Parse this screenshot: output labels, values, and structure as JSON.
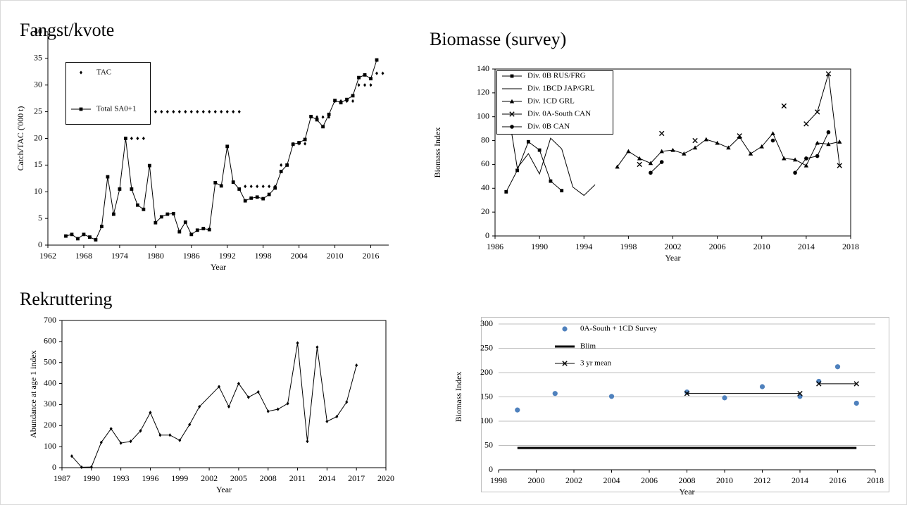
{
  "chart_data": [
    {
      "type": "line",
      "title": "Fangst/kvote",
      "xlabel": "Year",
      "ylabel": "Catch/TAC ('000 t)",
      "xlim": [
        1962,
        2019
      ],
      "xticks": [
        1962,
        1968,
        1974,
        1980,
        1986,
        1992,
        1998,
        2004,
        2010,
        2016
      ],
      "ylim": [
        0,
        40
      ],
      "yticks": [
        0,
        5,
        10,
        15,
        20,
        25,
        30,
        35,
        40
      ],
      "series": [
        {
          "name": "TAC",
          "color": "#000000",
          "marker": "diamond",
          "line": false,
          "x": [
            1975,
            1976,
            1977,
            1978,
            1979,
            1980,
            1981,
            1982,
            1983,
            1984,
            1985,
            1986,
            1987,
            1988,
            1989,
            1990,
            1991,
            1992,
            1993,
            1994,
            1995,
            1996,
            1997,
            1998,
            1999,
            2000,
            2001,
            2002,
            2003,
            2004,
            2005,
            2006,
            2007,
            2008,
            2009,
            2010,
            2011,
            2012,
            2013,
            2014,
            2015,
            2016,
            2017,
            2018
          ],
          "values": [
            20,
            20,
            20,
            20,
            25,
            25,
            25,
            25,
            25,
            25,
            25,
            25,
            25,
            25,
            25,
            25,
            25,
            25,
            25,
            25,
            11,
            11,
            11,
            11,
            11,
            11,
            15,
            15,
            19,
            19,
            19,
            24,
            24,
            24,
            24,
            27,
            27,
            27,
            27,
            30,
            30,
            30,
            32.2,
            32.2
          ]
        },
        {
          "name": "Total SA0+1",
          "color": "#000000",
          "marker": "square",
          "line": true,
          "x": [
            1965,
            1966,
            1967,
            1968,
            1969,
            1970,
            1971,
            1972,
            1973,
            1974,
            1975,
            1976,
            1977,
            1978,
            1979,
            1980,
            1981,
            1982,
            1983,
            1984,
            1985,
            1986,
            1987,
            1988,
            1989,
            1990,
            1991,
            1992,
            1993,
            1994,
            1995,
            1996,
            1997,
            1998,
            1999,
            2000,
            2001,
            2002,
            2003,
            2004,
            2005,
            2006,
            2007,
            2008,
            2009,
            2010,
            2011,
            2012,
            2013,
            2014,
            2015,
            2016,
            2017
          ],
          "values": [
            1.7,
            2.0,
            1.2,
            2.0,
            1.5,
            1.0,
            3.5,
            12.8,
            5.8,
            10.5,
            20,
            10.5,
            7.5,
            6.7,
            14.9,
            4.2,
            5.3,
            5.8,
            5.9,
            2.5,
            4.3,
            2.0,
            2.8,
            3.1,
            2.9,
            11.7,
            11.1,
            18.5,
            11.8,
            10.5,
            8.3,
            8.8,
            9.0,
            8.7,
            9.5,
            10.7,
            13.8,
            15.0,
            18.9,
            19.2,
            19.8,
            24.1,
            23.5,
            22.2,
            24.5,
            27.1,
            26.7,
            27.3,
            28.0,
            31.4,
            31.9,
            31.2,
            34.7
          ]
        }
      ]
    },
    {
      "type": "line",
      "title": "Biomasse (survey)",
      "xlabel": "Year",
      "ylabel": "Biomass Index",
      "xlim": [
        1986,
        2018
      ],
      "xticks": [
        1986,
        1990,
        1994,
        1998,
        2002,
        2006,
        2010,
        2014,
        2018
      ],
      "ylim": [
        0,
        140
      ],
      "yticks": [
        0,
        20,
        40,
        60,
        80,
        100,
        120,
        140
      ],
      "series": [
        {
          "name": "Div. 0B RUS/FRG",
          "color": "#000000",
          "marker": "square",
          "line": true,
          "x": [
            1987,
            1988,
            1989,
            1990,
            1991,
            1992
          ],
          "values": [
            37,
            55,
            79,
            72,
            46,
            38
          ]
        },
        {
          "name": "Div. 1BCD JAP/GRL",
          "color": "#000000",
          "marker": "none",
          "line": true,
          "x": [
            1987,
            1988,
            1989,
            1990,
            1991,
            1992,
            1993,
            1994,
            1995
          ],
          "values": [
            115,
            57,
            69,
            52,
            82,
            73,
            41,
            34,
            43
          ]
        },
        {
          "name": "Div. 1CD GRL",
          "color": "#000000",
          "marker": "triangle",
          "line": true,
          "x": [
            1997,
            1998,
            1999,
            2000,
            2001,
            2002,
            2003,
            2004,
            2005,
            2006,
            2007,
            2008,
            2009,
            2010,
            2011,
            2012,
            2013,
            2014,
            2015,
            2016,
            2017
          ],
          "values": [
            58,
            71,
            65,
            61,
            71,
            72,
            69,
            74,
            81,
            78,
            74,
            83,
            69,
            75,
            86,
            65,
            64,
            59,
            78,
            77,
            79
          ]
        },
        {
          "name": "Div. 0A-South CAN",
          "color": "#000000",
          "marker": "x",
          "line": true,
          "x": [
            1999,
            2000,
            2001,
            2002,
            2003,
            2004,
            2005,
            2006,
            2007,
            2008,
            2009,
            2010,
            2011,
            2012,
            2013,
            2014,
            2015,
            2016,
            2017
          ],
          "values": [
            60,
            null,
            86,
            null,
            null,
            80,
            null,
            null,
            null,
            84,
            null,
            null,
            null,
            109,
            null,
            94,
            104,
            136,
            59
          ]
        },
        {
          "name": "Div. 0B CAN",
          "color": "#000000",
          "marker": "circle",
          "line": true,
          "x": [
            2000,
            2001,
            2002,
            2003,
            2004,
            2005,
            2006,
            2007,
            2008,
            2009,
            2010,
            2011,
            2012,
            2013,
            2014,
            2015,
            2016
          ],
          "values": [
            53,
            62,
            null,
            null,
            null,
            null,
            null,
            null,
            null,
            null,
            null,
            80,
            null,
            53,
            65,
            67,
            87
          ]
        }
      ]
    },
    {
      "type": "line",
      "title": "Rekruttering",
      "xlabel": "Year",
      "ylabel": "Abundance at age 1 index",
      "xlim": [
        1987,
        2020
      ],
      "xticks": [
        1987,
        1990,
        1993,
        1996,
        1999,
        2002,
        2005,
        2008,
        2011,
        2014,
        2017,
        2020
      ],
      "ylim": [
        0,
        700
      ],
      "yticks": [
        0,
        100,
        200,
        300,
        400,
        500,
        600,
        700
      ],
      "series": [
        {
          "color": "#000000",
          "marker": "diamond",
          "line": true,
          "x": [
            1988,
            1989,
            1990,
            1991,
            1992,
            1993,
            1994,
            1995,
            1996,
            1997,
            1998,
            1999,
            2000,
            2001,
            2003,
            2004,
            2005,
            2006,
            2007,
            2008,
            2009,
            2010,
            2011,
            2012,
            2013,
            2014,
            2015,
            2016,
            2017
          ],
          "values": [
            55,
            2,
            3,
            120,
            185,
            117,
            125,
            175,
            262,
            155,
            155,
            130,
            205,
            290,
            385,
            290,
            400,
            335,
            360,
            268,
            278,
            305,
            593,
            125,
            573,
            220,
            243,
            312,
            487
          ]
        }
      ]
    },
    {
      "type": "line",
      "xlabel": "Year",
      "ylabel": "Biomass Index",
      "grid": true,
      "xlim": [
        1998,
        2018
      ],
      "xticks": [
        1998,
        2000,
        2002,
        2004,
        2006,
        2008,
        2010,
        2012,
        2014,
        2016,
        2018
      ],
      "ylim": [
        0,
        300
      ],
      "yticks": [
        0,
        50,
        100,
        150,
        200,
        250,
        300
      ],
      "series": [
        {
          "name": "0A-South + 1CD Survey",
          "color": "#4f81bd",
          "marker": "dot",
          "line": false,
          "x": [
            1999,
            2001,
            2004,
            2008,
            2010,
            2012,
            2014,
            2015,
            2016,
            2017
          ],
          "values": [
            123,
            157,
            151,
            160,
            148,
            171,
            151,
            182,
            212,
            137
          ]
        },
        {
          "name": "Blim",
          "color": "#000000",
          "marker": "none",
          "line": true,
          "width": 3,
          "x": [
            1999,
            2017
          ],
          "values": [
            45,
            45
          ]
        },
        {
          "name": "3 yr mean",
          "color": "#000000",
          "marker": "x",
          "line": true,
          "x": [
            2008,
            2014,
            null,
            2015,
            2017
          ],
          "values": [
            157,
            157,
            null,
            177,
            177
          ]
        }
      ]
    }
  ]
}
